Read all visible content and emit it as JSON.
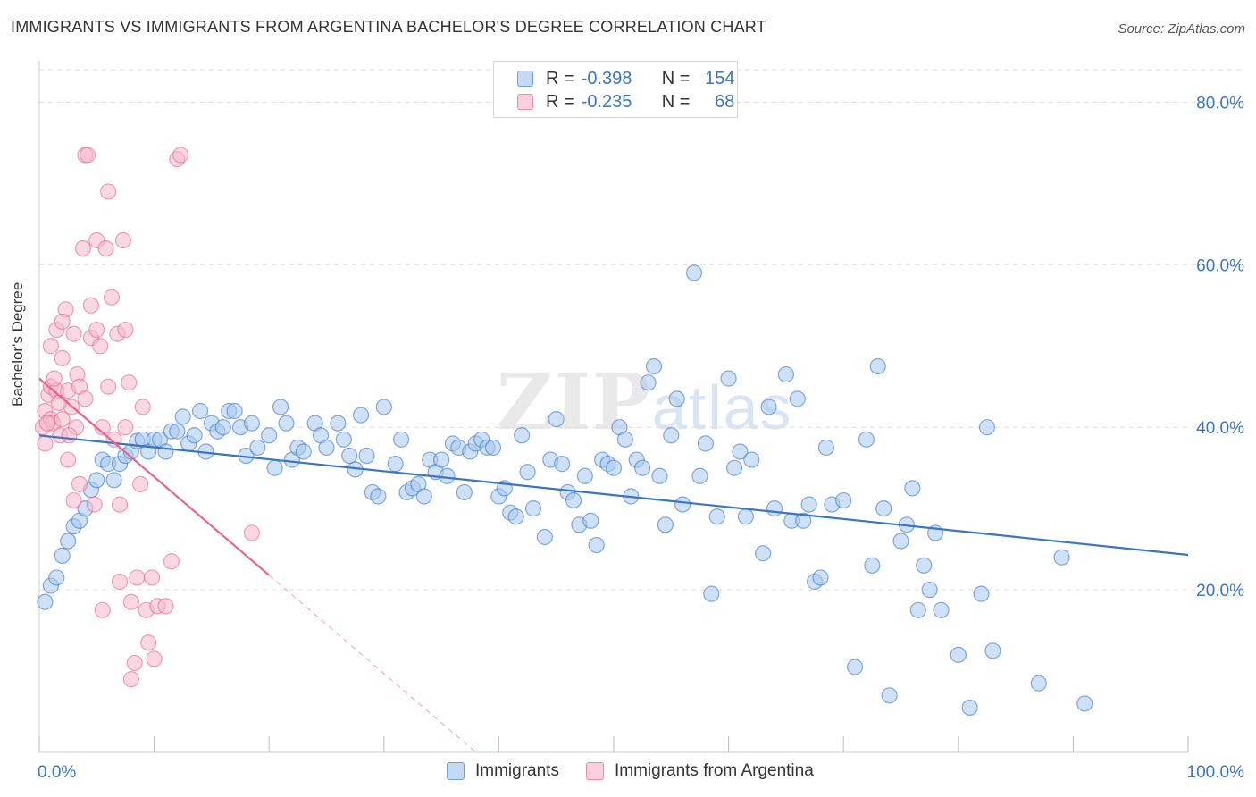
{
  "title": "IMMIGRANTS VS IMMIGRANTS FROM ARGENTINA BACHELOR'S DEGREE CORRELATION CHART",
  "source": "Source: ZipAtlas.com",
  "watermark": {
    "zip": "ZIP",
    "atlas": "atlas"
  },
  "legend_top": [
    {
      "r_label": "R =",
      "r_value": "-0.398",
      "n_label": "N =",
      "n_value": "154",
      "color": "#a8c8ee"
    },
    {
      "r_label": "R =",
      "r_value": "-0.235",
      "n_label": "N =",
      "n_value": "68",
      "color": "#f6b8cb"
    }
  ],
  "legend_bottom": [
    "Immigrants",
    "Immigrants from Argentina"
  ],
  "chart_data": {
    "type": "scatter",
    "xlabel": "",
    "ylabel": "Bachelor's Degree",
    "xlim": [
      0,
      100
    ],
    "ylim": [
      0,
      84
    ],
    "x_tick_labels": [
      "0.0%",
      "100.0%"
    ],
    "y_tick_labels": [
      "20.0%",
      "40.0%",
      "60.0%",
      "80.0%"
    ],
    "y_ticks": [
      20,
      40,
      60,
      80
    ],
    "grid": true,
    "series": [
      {
        "name": "Immigrants",
        "color": "#3a75c4",
        "fill": "#a8c8ee",
        "trend": {
          "x": [
            0,
            100
          ],
          "y": [
            39.0,
            24.3
          ]
        },
        "points": [
          [
            0.5,
            18.5
          ],
          [
            1,
            20.5
          ],
          [
            1.5,
            21.5
          ],
          [
            2,
            24.2
          ],
          [
            2.5,
            26.0
          ],
          [
            3,
            27.8
          ],
          [
            3.5,
            28.5
          ],
          [
            4,
            30.0
          ],
          [
            4.5,
            32.3
          ],
          [
            5,
            33.5
          ],
          [
            5.5,
            36.0
          ],
          [
            6,
            35.5
          ],
          [
            6.5,
            33.5
          ],
          [
            7,
            35.5
          ],
          [
            7.5,
            36.5
          ],
          [
            8,
            37.0
          ],
          [
            8.5,
            38.3
          ],
          [
            9,
            38.5
          ],
          [
            9.5,
            37.0
          ],
          [
            10,
            38.5
          ],
          [
            10.5,
            38.5
          ],
          [
            11,
            37.0
          ],
          [
            11.5,
            39.5
          ],
          [
            12,
            39.5
          ],
          [
            12.5,
            41.3
          ],
          [
            13,
            38.0
          ],
          [
            13.5,
            39.0
          ],
          [
            14,
            42.0
          ],
          [
            14.5,
            37.0
          ],
          [
            15,
            40.5
          ],
          [
            15.5,
            39.5
          ],
          [
            16,
            40.0
          ],
          [
            16.5,
            42.0
          ],
          [
            17,
            42.0
          ],
          [
            17.5,
            40.0
          ],
          [
            18,
            36.5
          ],
          [
            18.5,
            40.5
          ],
          [
            19,
            37.5
          ],
          [
            20,
            39.0
          ],
          [
            20.5,
            35.0
          ],
          [
            21,
            42.5
          ],
          [
            21.5,
            40.5
          ],
          [
            22,
            36.0
          ],
          [
            22.5,
            37.5
          ],
          [
            23,
            37.0
          ],
          [
            24,
            40.5
          ],
          [
            24.5,
            39.0
          ],
          [
            25,
            37.5
          ],
          [
            26,
            40.5
          ],
          [
            26.5,
            38.5
          ],
          [
            27,
            36.5
          ],
          [
            27.5,
            34.8
          ],
          [
            28,
            41.5
          ],
          [
            28.5,
            36.5
          ],
          [
            29,
            32.0
          ],
          [
            29.5,
            31.5
          ],
          [
            30,
            42.5
          ],
          [
            31,
            35.5
          ],
          [
            31.5,
            38.5
          ],
          [
            32,
            32.0
          ],
          [
            32.5,
            32.5
          ],
          [
            33,
            33.0
          ],
          [
            33.5,
            31.5
          ],
          [
            34,
            36.0
          ],
          [
            34.5,
            34.5
          ],
          [
            35,
            36.0
          ],
          [
            35.5,
            34.0
          ],
          [
            36,
            38.0
          ],
          [
            36.5,
            37.5
          ],
          [
            37,
            32.0
          ],
          [
            37.5,
            37.0
          ],
          [
            38,
            38.0
          ],
          [
            38.5,
            38.5
          ],
          [
            39,
            37.5
          ],
          [
            39.5,
            37.5
          ],
          [
            40,
            31.5
          ],
          [
            40.5,
            32.5
          ],
          [
            41,
            29.5
          ],
          [
            41.5,
            29.0
          ],
          [
            42,
            39.0
          ],
          [
            42.5,
            34.5
          ],
          [
            43,
            30.0
          ],
          [
            44,
            26.5
          ],
          [
            44.5,
            36.0
          ],
          [
            45,
            41.0
          ],
          [
            45.5,
            35.5
          ],
          [
            46,
            32.0
          ],
          [
            46.5,
            31.0
          ],
          [
            47,
            28.0
          ],
          [
            47.5,
            34.0
          ],
          [
            48,
            28.5
          ],
          [
            48.5,
            25.5
          ],
          [
            49,
            36.0
          ],
          [
            49.5,
            35.5
          ],
          [
            50,
            35.0
          ],
          [
            50.5,
            40.0
          ],
          [
            51,
            38.5
          ],
          [
            51.5,
            31.5
          ],
          [
            52,
            36.0
          ],
          [
            52.5,
            35.0
          ],
          [
            53,
            45.5
          ],
          [
            53.5,
            47.5
          ],
          [
            54,
            34.0
          ],
          [
            54.5,
            28.0
          ],
          [
            55,
            39.0
          ],
          [
            55.5,
            43.5
          ],
          [
            56,
            30.5
          ],
          [
            57,
            59.0
          ],
          [
            57.5,
            34.0
          ],
          [
            58,
            38.0
          ],
          [
            58.5,
            19.5
          ],
          [
            59,
            29.0
          ],
          [
            60,
            46.0
          ],
          [
            60.5,
            35.0
          ],
          [
            61,
            37.0
          ],
          [
            61.5,
            29.0
          ],
          [
            62,
            36.0
          ],
          [
            63,
            24.5
          ],
          [
            63.5,
            42.5
          ],
          [
            64,
            30.0
          ],
          [
            65,
            46.5
          ],
          [
            65.5,
            28.5
          ],
          [
            66,
            43.5
          ],
          [
            66.5,
            28.5
          ],
          [
            67,
            30.5
          ],
          [
            67.5,
            21.0
          ],
          [
            68,
            21.5
          ],
          [
            68.5,
            37.5
          ],
          [
            69,
            30.5
          ],
          [
            70,
            31.0
          ],
          [
            71,
            10.5
          ],
          [
            72,
            38.5
          ],
          [
            72.5,
            23.0
          ],
          [
            73,
            47.5
          ],
          [
            73.5,
            30.0
          ],
          [
            74,
            7.0
          ],
          [
            75,
            26.0
          ],
          [
            75.5,
            28.0
          ],
          [
            76,
            32.5
          ],
          [
            76.5,
            17.5
          ],
          [
            77,
            23.0
          ],
          [
            77.5,
            20.0
          ],
          [
            78,
            27.0
          ],
          [
            78.5,
            17.5
          ],
          [
            80,
            12.0
          ],
          [
            81,
            5.5
          ],
          [
            82,
            19.5
          ],
          [
            82.5,
            40.0
          ],
          [
            83,
            12.5
          ],
          [
            87,
            8.5
          ],
          [
            89,
            24.0
          ],
          [
            91,
            6.0
          ]
        ]
      },
      {
        "name": "Immigrants from Argentina",
        "color": "#e8638f",
        "fill": "#f6b8cb",
        "trend": {
          "x": [
            0,
            20
          ],
          "y": [
            46.0,
            21.8
          ]
        },
        "trend_extension": {
          "x": [
            20,
            38
          ],
          "y": [
            21.8,
            0
          ]
        },
        "points": [
          [
            0.3,
            40.0
          ],
          [
            0.5,
            38.0
          ],
          [
            0.5,
            42.0
          ],
          [
            0.8,
            44.0
          ],
          [
            1,
            45.0
          ],
          [
            1,
            41.0
          ],
          [
            1,
            50.0
          ],
          [
            1.2,
            40.5
          ],
          [
            1.5,
            52.0
          ],
          [
            1.5,
            44.5
          ],
          [
            1.8,
            39.0
          ],
          [
            2,
            48.5
          ],
          [
            2,
            41.0
          ],
          [
            2.3,
            54.5
          ],
          [
            2.5,
            36.0
          ],
          [
            2.5,
            44.5
          ],
          [
            2.8,
            42.5
          ],
          [
            3,
            51.5
          ],
          [
            3,
            31.0
          ],
          [
            3.3,
            46.5
          ],
          [
            3.5,
            45.0
          ],
          [
            3.5,
            33.0
          ],
          [
            3.8,
            62.0
          ],
          [
            4,
            73.5
          ],
          [
            4,
            43.5
          ],
          [
            4.5,
            51.0
          ],
          [
            4.5,
            55.0
          ],
          [
            4.8,
            30.5
          ],
          [
            5,
            52.0
          ],
          [
            5,
            63.0
          ],
          [
            5.3,
            50.0
          ],
          [
            5.5,
            40.0
          ],
          [
            5.5,
            17.5
          ],
          [
            5.8,
            62.0
          ],
          [
            6,
            69.0
          ],
          [
            6,
            45.0
          ],
          [
            6.3,
            56.0
          ],
          [
            6.5,
            38.5
          ],
          [
            6.8,
            51.5
          ],
          [
            7,
            21.0
          ],
          [
            7,
            30.5
          ],
          [
            7.3,
            63.0
          ],
          [
            7.5,
            52.0
          ],
          [
            7.5,
            40.0
          ],
          [
            7.8,
            45.5
          ],
          [
            8,
            18.5
          ],
          [
            8,
            9.0
          ],
          [
            8.3,
            11.0
          ],
          [
            8.5,
            21.5
          ],
          [
            8.8,
            33.0
          ],
          [
            9,
            42.5
          ],
          [
            9.3,
            17.5
          ],
          [
            9.5,
            13.5
          ],
          [
            9.8,
            21.5
          ],
          [
            10,
            11.5
          ],
          [
            10.3,
            18.0
          ],
          [
            11,
            18.0
          ],
          [
            11.5,
            23.5
          ],
          [
            12,
            73.0
          ],
          [
            12.3,
            73.5
          ],
          [
            18.5,
            27.0
          ],
          [
            4.2,
            73.5
          ],
          [
            2,
            53.0
          ],
          [
            3.2,
            40.0
          ],
          [
            1.3,
            46.0
          ],
          [
            1.7,
            43.0
          ],
          [
            0.7,
            40.5
          ],
          [
            2.6,
            39.0
          ]
        ]
      }
    ]
  }
}
